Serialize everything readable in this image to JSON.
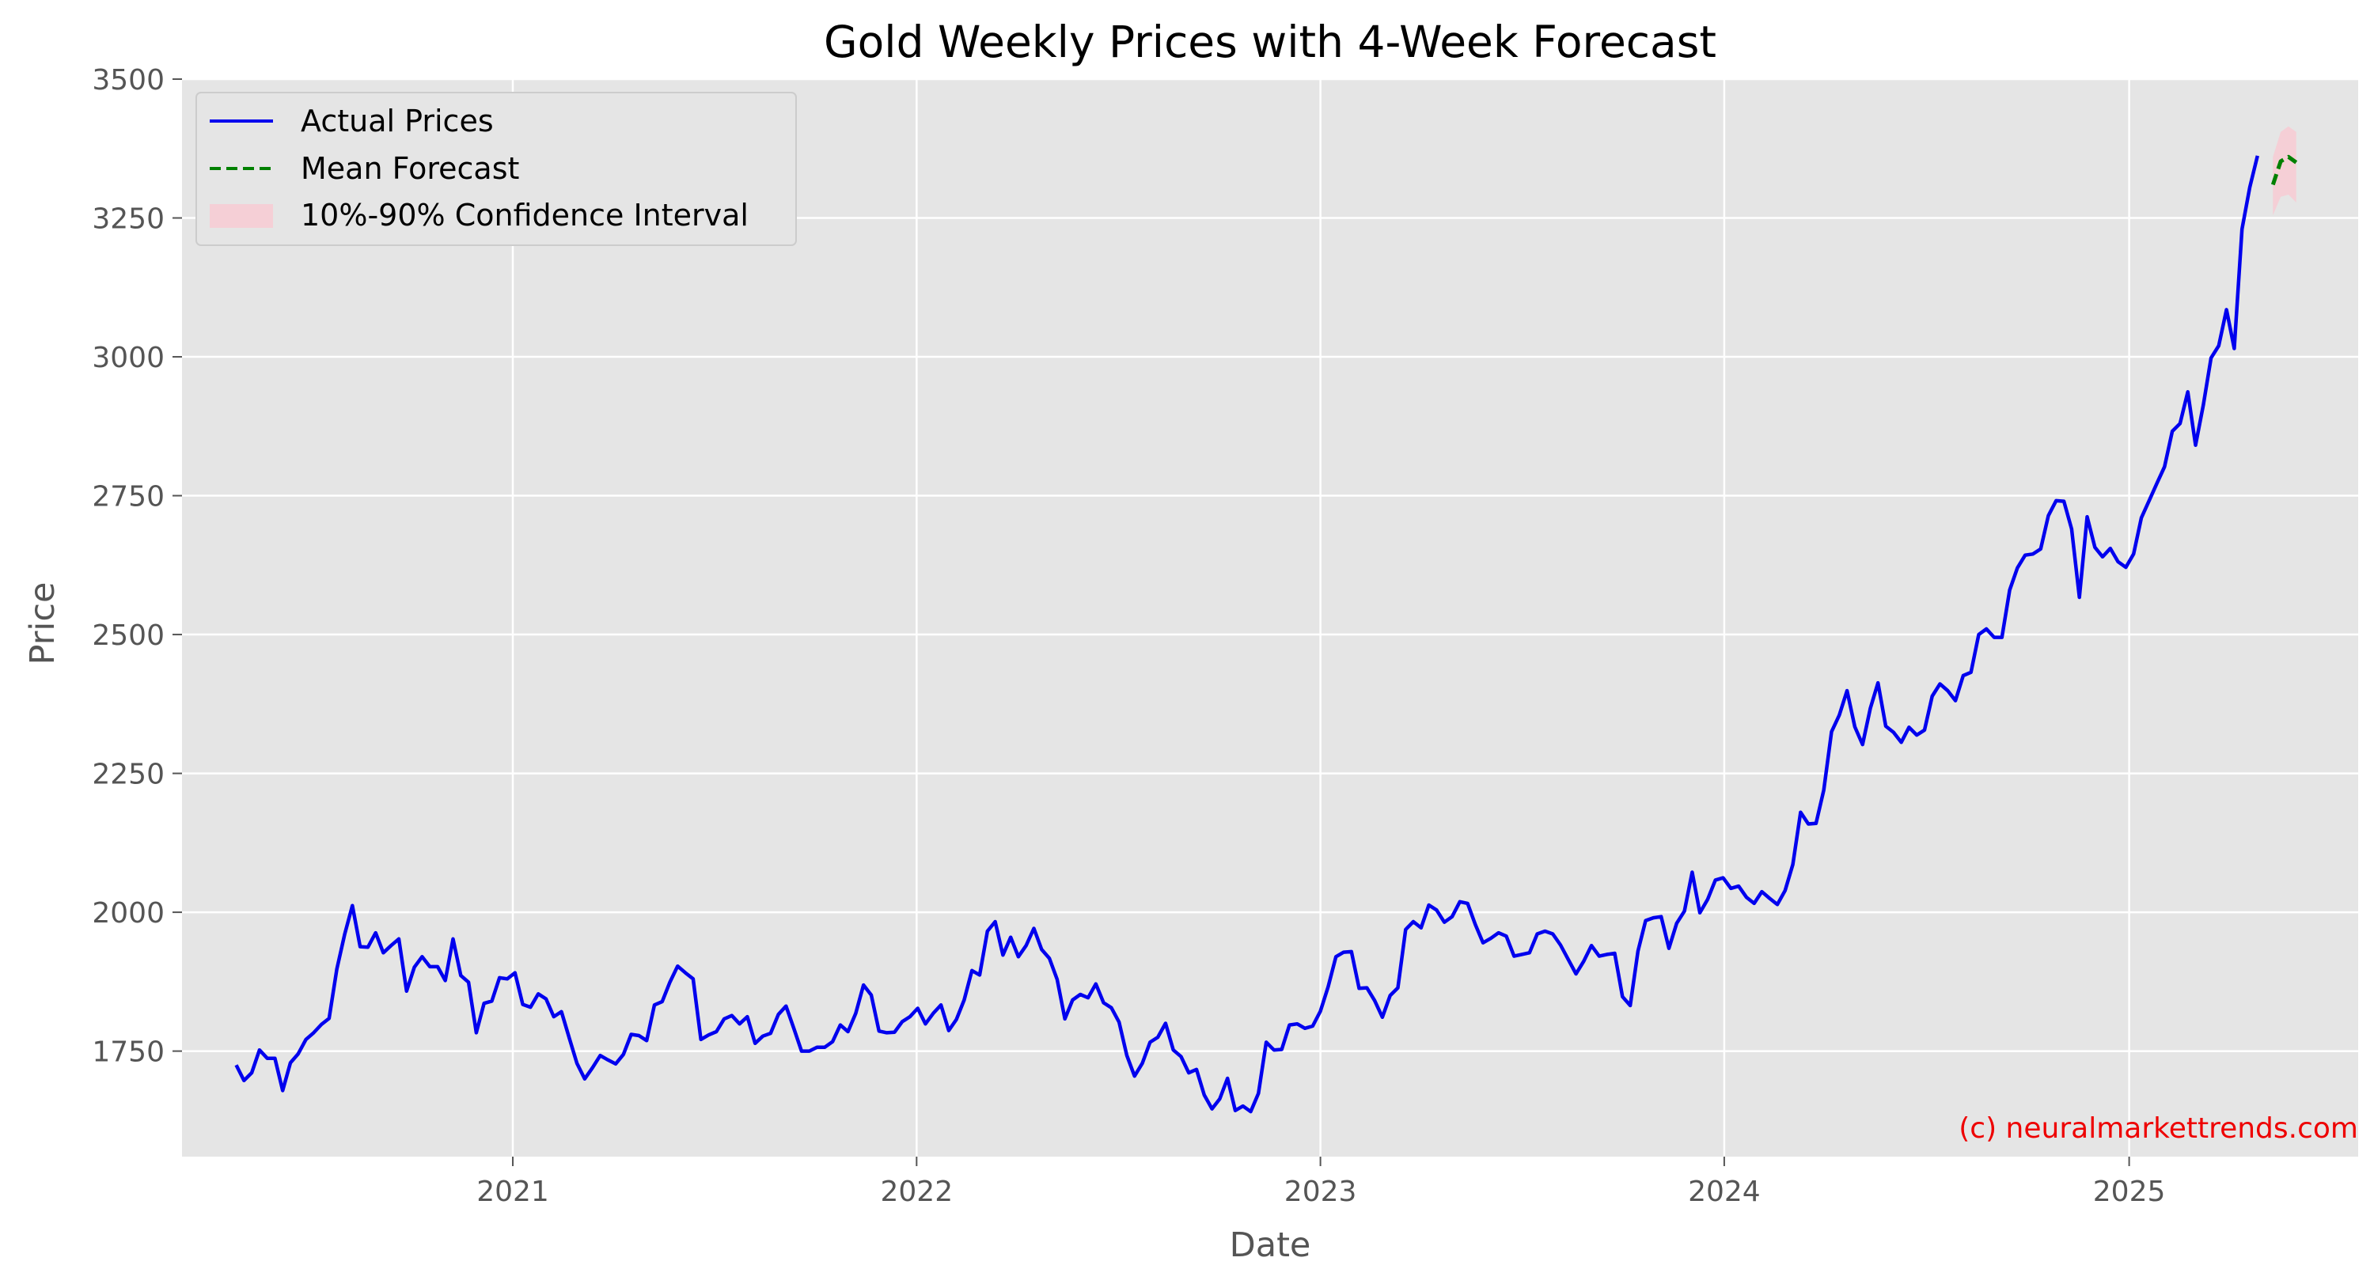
{
  "colors": {
    "plot_background": "#e5e5e5",
    "grid": "#ffffff",
    "actual": "#0000ee",
    "forecast": "#008000",
    "interval": "#ffc0cb",
    "watermark": "#ee0000",
    "tick_text": "#555555"
  },
  "chart_data": {
    "type": "line",
    "title": "Gold Weekly Prices with 4-Week Forecast",
    "xlabel": "Date",
    "ylabel": "Price",
    "xlim": [
      "2020-03-08",
      "2025-07-27"
    ],
    "ylim": [
      1560,
      3500
    ],
    "x_ticks": [
      {
        "label": "2021",
        "date": "2021-01-01"
      },
      {
        "label": "2022",
        "date": "2022-01-01"
      },
      {
        "label": "2023",
        "date": "2023-01-01"
      },
      {
        "label": "2024",
        "date": "2024-01-01"
      },
      {
        "label": "2025",
        "date": "2025-01-01"
      }
    ],
    "y_ticks": [
      1750,
      2000,
      2250,
      2500,
      2750,
      3000,
      3250,
      3500
    ],
    "grid": true,
    "legend": {
      "placement": "top-left",
      "entries": [
        "Actual Prices",
        "Mean Forecast",
        "10%-90% Confidence Interval"
      ]
    },
    "annotation": "(c) neuralmarkettrends.com",
    "series": [
      {
        "name": "Actual Prices",
        "style": "solid",
        "start_date": "2020-04-26",
        "interval_days": 7,
        "values": [
          1725,
          1697,
          1711,
          1752,
          1737,
          1737,
          1679,
          1729,
          1745,
          1771,
          1783,
          1798,
          1809,
          1898,
          1960,
          2012,
          1938,
          1937,
          1963,
          1927,
          1940,
          1952,
          1858,
          1901,
          1920,
          1902,
          1902,
          1877,
          1952,
          1886,
          1874,
          1783,
          1836,
          1840,
          1882,
          1880,
          1891,
          1834,
          1829,
          1853,
          1844,
          1812,
          1821,
          1774,
          1728,
          1700,
          1720,
          1742,
          1734,
          1727,
          1744,
          1780,
          1778,
          1769,
          1833,
          1839,
          1874,
          1903,
          1891,
          1880,
          1771,
          1779,
          1785,
          1808,
          1814,
          1799,
          1812,
          1764,
          1777,
          1782,
          1816,
          1831,
          1791,
          1750,
          1750,
          1757,
          1757,
          1767,
          1797,
          1785,
          1818,
          1869,
          1851,
          1786,
          1783,
          1784,
          1803,
          1812,
          1827,
          1799,
          1818,
          1833,
          1787,
          1807,
          1842,
          1895,
          1887,
          1966,
          1983,
          1923,
          1955,
          1920,
          1940,
          1971,
          1933,
          1917,
          1879,
          1808,
          1842,
          1852,
          1846,
          1871,
          1837,
          1828,
          1802,
          1742,
          1705,
          1728,
          1766,
          1775,
          1800,
          1752,
          1740,
          1711,
          1717,
          1671,
          1646,
          1664,
          1701,
          1643,
          1651,
          1641,
          1674,
          1766,
          1752,
          1753,
          1797,
          1799,
          1791,
          1795,
          1822,
          1866,
          1920,
          1928,
          1929,
          1863,
          1864,
          1841,
          1811,
          1850,
          1864,
          1969,
          1983,
          1972,
          2013,
          2004,
          1982,
          1992,
          2019,
          2016,
          1978,
          1945,
          1953,
          1963,
          1957,
          1921,
          1924,
          1927,
          1961,
          1966,
          1961,
          1941,
          1915,
          1889,
          1912,
          1940,
          1921,
          1924,
          1926,
          1848,
          1832,
          1930,
          1985,
          1990,
          1992,
          1935,
          1980,
          2002,
          2072,
          1999,
          2023,
          2058,
          2062,
          2043,
          2047,
          2027,
          2016,
          2037,
          2025,
          2014,
          2039,
          2086,
          2180,
          2159,
          2160,
          2220,
          2325,
          2355,
          2399,
          2334,
          2302,
          2367,
          2413,
          2335,
          2324,
          2306,
          2333,
          2319,
          2328,
          2389,
          2411,
          2399,
          2381,
          2426,
          2432,
          2500,
          2510,
          2495,
          2495,
          2580,
          2620,
          2643,
          2645,
          2654,
          2714,
          2741,
          2740,
          2690,
          2567,
          2712,
          2657,
          2640,
          2655,
          2631,
          2621,
          2645,
          2710,
          2741,
          2772,
          2802,
          2866,
          2880,
          2937,
          2841,
          2913,
          2998,
          3020,
          3085,
          3015,
          3230,
          3305,
          3362
        ]
      },
      {
        "name": "Mean Forecast",
        "style": "dashed",
        "start_date": "2025-05-11",
        "interval_days": 7,
        "values": [
          3310,
          3352,
          3360,
          3350
        ]
      }
    ],
    "band": {
      "name": "10%-90% Confidence Interval",
      "start_date": "2025-05-11",
      "interval_days": 7,
      "lower": [
        3255,
        3288,
        3292,
        3278
      ],
      "upper": [
        3360,
        3405,
        3415,
        3405
      ]
    }
  }
}
